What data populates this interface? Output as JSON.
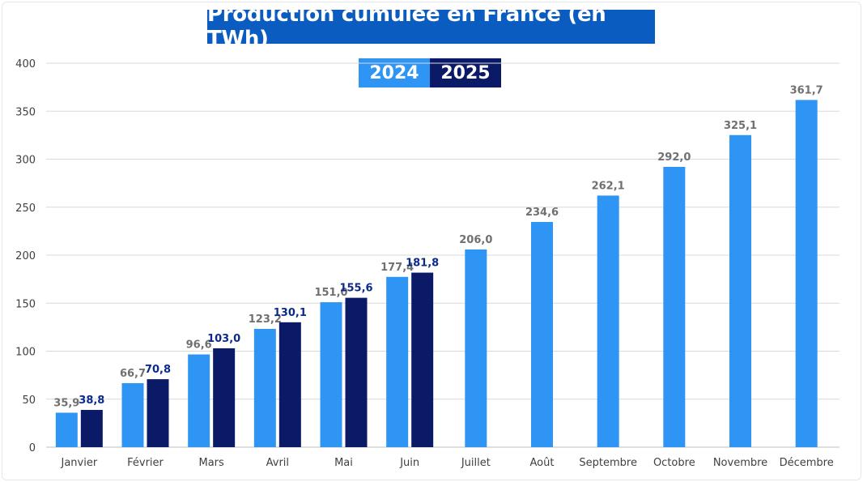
{
  "chart_data": {
    "type": "bar",
    "title": "Production cumulée en France (en TWh)",
    "xlabel": "",
    "ylabel": "",
    "ylim": [
      0,
      400
    ],
    "yticks": [
      "0",
      "50",
      "100",
      "150",
      "200",
      "250",
      "300",
      "350",
      "400"
    ],
    "grid": true,
    "legend_position": "top-center",
    "categories": [
      "Janvier",
      "Février",
      "Mars",
      "Avril",
      "Mai",
      "Juin",
      "Juillet",
      "Août",
      "Septembre",
      "Octobre",
      "Novembre",
      "Décembre"
    ],
    "series": [
      {
        "name": "2024",
        "color": "#2f95f5",
        "label_color": "#707070",
        "values": [
          35.9,
          66.7,
          96.6,
          123.2,
          151.0,
          177.4,
          206.0,
          234.6,
          262.1,
          292.0,
          325.1,
          361.7
        ],
        "labels": [
          "35,9",
          "66,7",
          "96,6",
          "123,2",
          "151,0",
          "177,4",
          "206,0",
          "234,6",
          "262,1",
          "292,0",
          "325,1",
          "361,7"
        ]
      },
      {
        "name": "2025",
        "color": "#0b1a66",
        "label_color": "#0b2a8a",
        "values": [
          38.8,
          70.8,
          103.0,
          130.1,
          155.6,
          181.8,
          null,
          null,
          null,
          null,
          null,
          null
        ],
        "labels": [
          "38,8",
          "70,8",
          "103,0",
          "130,1",
          "155,6",
          "181,8",
          "",
          "",
          "",
          "",
          "",
          ""
        ]
      }
    ]
  }
}
